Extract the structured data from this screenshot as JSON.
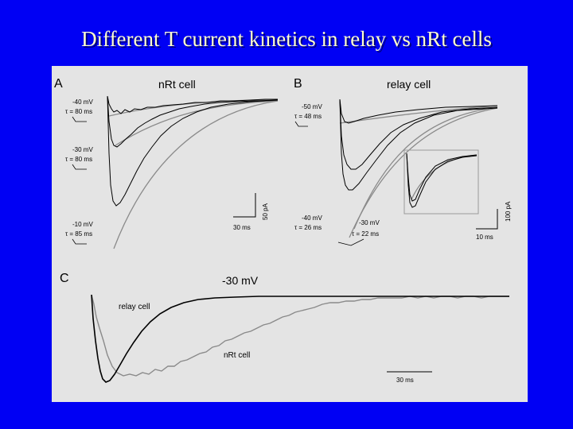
{
  "slide": {
    "title": "Different T current kinetics in relay vs nRt cells"
  },
  "panel_a": {
    "letter": "A",
    "title": "nRt cell",
    "traces": [
      {
        "voltage": "-40 mV",
        "tau": "τ = 80 ms"
      },
      {
        "voltage": "-30 mV",
        "tau": "τ = 80 ms"
      },
      {
        "voltage": "-10 mV",
        "tau": "τ = 85 ms"
      }
    ],
    "scale_amp": "50 pA",
    "scale_time": "30 ms"
  },
  "panel_b": {
    "letter": "B",
    "title": "relay cell",
    "traces": [
      {
        "voltage": "-50 mV",
        "tau": "τ = 48 ms"
      },
      {
        "voltage": "-40 mV",
        "tau": "τ = 26 ms"
      },
      {
        "voltage": "-30 mV",
        "tau": "τ = 22 ms"
      }
    ],
    "scale_amp": "100 pA",
    "scale_time": "10 ms"
  },
  "panel_c": {
    "letter": "C",
    "title": "-30 mV",
    "relay_label": "relay cell",
    "nrt_label": "nRt cell",
    "scale_time": "30 ms"
  },
  "colors": {
    "background": "#0000f4",
    "title": "#ffffcc",
    "figure_bg": "#e4e4e4",
    "trace": "#000000",
    "fit": "#8a8a8a"
  }
}
